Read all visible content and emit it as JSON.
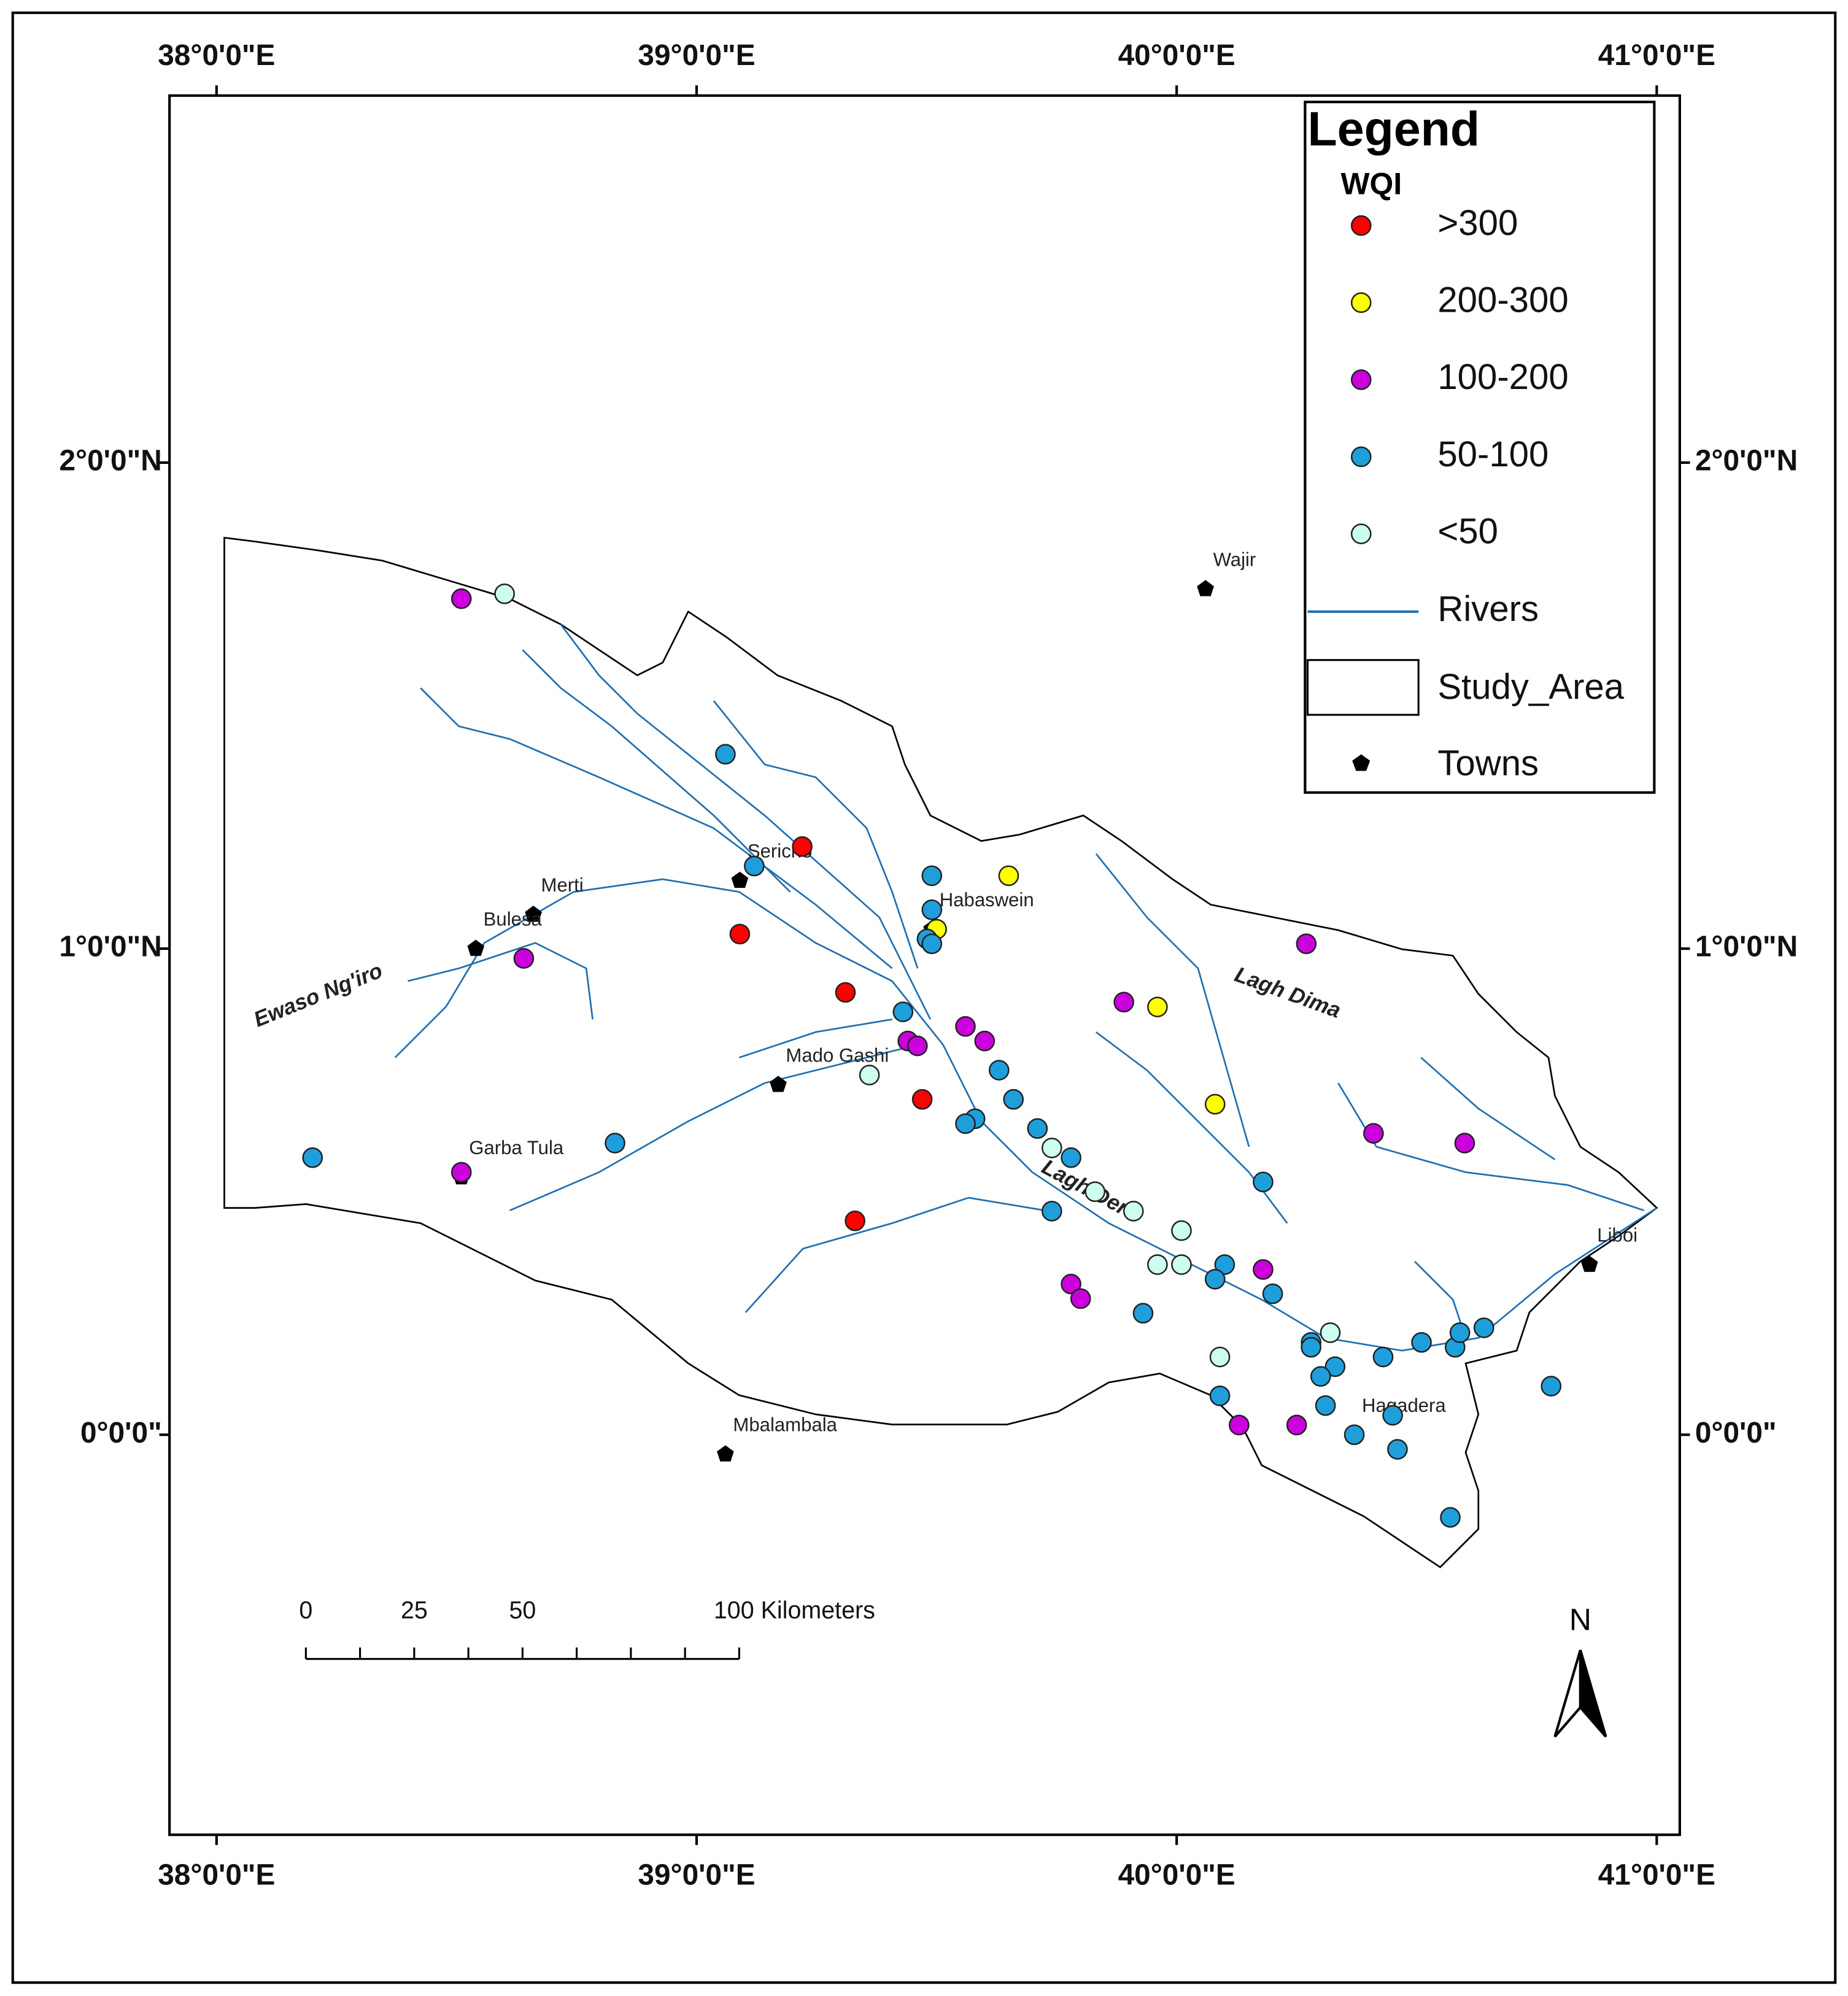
{
  "map": {
    "xlim": [
      37.902,
      41.048
    ],
    "ylim": [
      -0.823,
      2.755
    ],
    "xticks": [
      {
        "value": 38,
        "label": "38°0'0\"E"
      },
      {
        "value": 39,
        "label": "39°0'0\"E"
      },
      {
        "value": 40,
        "label": "40°0'0\"E"
      },
      {
        "value": 41,
        "label": "41°0'0\"E"
      }
    ],
    "yticks": [
      {
        "value": 2,
        "label": "2°0'0\"N"
      },
      {
        "value": 1,
        "label": "1°0'0\"N"
      },
      {
        "value": 0,
        "label": "0°0'0\""
      }
    ],
    "legend": {
      "title": "Legend",
      "subtitle": "WQI",
      "classes": [
        {
          "name": ">300",
          "color": "#ff0000",
          "lon": [
            39.22,
            39.09,
            39.31,
            39.47,
            39.33
          ],
          "lat": [
            1.21,
            1.03,
            0.91,
            0.69,
            0.44
          ]
        },
        {
          "name": "200-300",
          "color": "#ffff00",
          "lon": [
            39.65,
            39.5,
            39.96,
            40.08
          ],
          "lat": [
            1.15,
            1.04,
            0.88,
            0.68
          ]
        },
        {
          "name": "100-200",
          "color": "#cc00dd",
          "lon": [
            38.51,
            38.64,
            39.56,
            39.6,
            39.44,
            39.46,
            38.51,
            39.89,
            40.27,
            40.41,
            40.6,
            40.18,
            39.78,
            39.8,
            40.13,
            40.25
          ],
          "lat": [
            1.72,
            0.98,
            0.84,
            0.81,
            0.81,
            0.8,
            0.54,
            0.89,
            1.01,
            0.62,
            0.6,
            0.34,
            0.31,
            0.28,
            0.02,
            0.02
          ]
        },
        {
          "name": "50-100",
          "color": "#1e9fdc",
          "lon": [
            39.06,
            39.12,
            39.49,
            39.49,
            39.48,
            39.49,
            39.43,
            39.63,
            39.66,
            39.58,
            39.56,
            39.71,
            39.78,
            38.83,
            38.2,
            39.74,
            40.18,
            40.1,
            40.08,
            40.2,
            39.93,
            40.28,
            40.28,
            40.43,
            40.51,
            40.58,
            40.59,
            40.64,
            40.33,
            40.3,
            40.78,
            40.09,
            40.31,
            40.45,
            40.37,
            40.46,
            40.57
          ],
          "lat": [
            1.4,
            1.17,
            1.15,
            1.08,
            1.02,
            1.01,
            0.87,
            0.75,
            0.69,
            0.65,
            0.64,
            0.63,
            0.57,
            0.6,
            0.57,
            0.46,
            0.52,
            0.35,
            0.32,
            0.29,
            0.25,
            0.19,
            0.18,
            0.16,
            0.19,
            0.18,
            0.21,
            0.22,
            0.14,
            0.12,
            0.1,
            0.08,
            0.06,
            0.04,
            0.0,
            -0.03,
            -0.17
          ]
        },
        {
          "name": "<50",
          "color": "#ccffee",
          "lon": [
            38.6,
            39.36,
            39.74,
            39.83,
            39.91,
            40.01,
            39.96,
            40.01,
            40.32,
            40.09
          ],
          "lat": [
            1.73,
            0.74,
            0.59,
            0.5,
            0.46,
            0.42,
            0.35,
            0.35,
            0.21,
            0.16
          ]
        }
      ],
      "rivers": "Rivers",
      "study_area": "Study_Area",
      "towns": "Towns"
    },
    "towns": [
      {
        "name": "Wajir",
        "lon": 40.06,
        "lat": 1.74
      },
      {
        "name": "Sericho",
        "lon": 39.09,
        "lat": 1.14
      },
      {
        "name": "Merti",
        "lon": 38.66,
        "lat": 1.07
      },
      {
        "name": "Bulesa",
        "lon": 38.54,
        "lat": 1.0
      },
      {
        "name": "Habaswein",
        "lon": 39.49,
        "lat": 1.04
      },
      {
        "name": "Mado Gashi",
        "lon": 39.17,
        "lat": 0.72
      },
      {
        "name": "Garba Tula",
        "lon": 38.51,
        "lat": 0.53
      },
      {
        "name": "Mbalambala",
        "lon": 39.06,
        "lat": -0.04
      },
      {
        "name": "Hagadera",
        "lon": 40.37,
        "lat": 0.0
      },
      {
        "name": "Liboi",
        "lon": 40.86,
        "lat": 0.35
      }
    ],
    "river_labels": [
      "Ewaso Ng'iro",
      "Lagh Dima",
      "Lagh Dera"
    ],
    "scale_bar": {
      "ticks": [
        0,
        25,
        50,
        {
          "value": 100,
          "label": "100 Kilometers"
        }
      ]
    },
    "north": "N"
  }
}
